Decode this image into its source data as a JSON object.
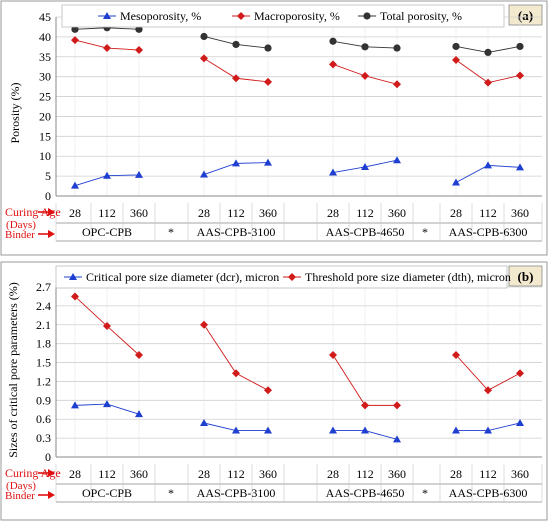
{
  "panels": [
    {
      "id": "a",
      "panel_label": "(a)",
      "ylabel": "Porosity (%)",
      "yticks": [
        "0",
        "5",
        "10",
        "15",
        "20",
        "25",
        "30",
        "35",
        "40",
        "45"
      ]
    },
    {
      "id": "b",
      "panel_label": "(b)",
      "ylabel": "Sizes of critical pore parameters (%)",
      "yticks": [
        "0",
        "0.3",
        "0.6",
        "0.9",
        "1.2",
        "1.5",
        "1.8",
        "2.1",
        "2.4",
        "2.7"
      ]
    }
  ],
  "axis_rows": {
    "curing_age_label_1": "Curing Age",
    "curing_age_label_2": "(Days)",
    "binder_label": "Binder",
    "ages": [
      "28",
      "112",
      "360"
    ],
    "binders": [
      "OPC-CPB",
      "AAS-CPB-3100",
      "AAS-CPB-4650",
      "AAS-CPB-6300"
    ],
    "separator": "*"
  },
  "colors": {
    "meso": "#1f3fd0",
    "macro": "#d11a1a",
    "total": "#333333",
    "arrow": "#e01010",
    "axis": "#888888",
    "grid": "#cfcfcf"
  },
  "chart_data": [
    {
      "type": "line",
      "panel": "(a)",
      "ylabel": "Porosity (%)",
      "ylim": [
        0,
        45
      ],
      "grid": true,
      "legend_position": "top",
      "categories": [
        "OPC-CPB 28",
        "OPC-CPB 112",
        "OPC-CPB 360",
        "AAS-CPB-3100 28",
        "AAS-CPB-3100 112",
        "AAS-CPB-3100 360",
        "AAS-CPB-4650 28",
        "AAS-CPB-4650 112",
        "AAS-CPB-4650 360",
        "AAS-CPB-6300 28",
        "AAS-CPB-6300 112",
        "AAS-CPB-6300 360"
      ],
      "series": [
        {
          "name": "Mesoporosity, %",
          "marker": "triangle",
          "color": "#1f3fd0",
          "values": [
            2.6,
            5.1,
            5.3,
            5.4,
            8.2,
            8.4,
            5.9,
            7.3,
            9.0,
            3.4,
            7.7,
            7.2
          ]
        },
        {
          "name": "Macroporosity, %",
          "marker": "diamond",
          "color": "#d11a1a",
          "values": [
            39.2,
            37.2,
            36.7,
            34.6,
            29.6,
            28.7,
            33.1,
            30.2,
            28.1,
            34.2,
            28.5,
            30.3
          ]
        },
        {
          "name": "Total porosity, %",
          "marker": "circle",
          "color": "#333333",
          "values": [
            41.9,
            42.3,
            41.9,
            40.1,
            38.1,
            37.2,
            38.9,
            37.5,
            37.2,
            37.6,
            36.1,
            37.6
          ]
        }
      ]
    },
    {
      "type": "line",
      "panel": "(b)",
      "ylabel": "Sizes of critical pore parameters (%)",
      "ylim": [
        0,
        2.7
      ],
      "grid": true,
      "legend_position": "top",
      "categories": [
        "OPC-CPB 28",
        "OPC-CPB 112",
        "OPC-CPB 360",
        "AAS-CPB-3100 28",
        "AAS-CPB-3100 112",
        "AAS-CPB-3100 360",
        "AAS-CPB-4650 28",
        "AAS-CPB-4650 112",
        "AAS-CPB-4650 360",
        "AAS-CPB-6300 28",
        "AAS-CPB-6300 112",
        "AAS-CPB-6300 360"
      ],
      "series": [
        {
          "name": "Critical pore size diameter (dcr), micron",
          "marker": "triangle",
          "color": "#1f3fd0",
          "values": [
            0.82,
            0.84,
            0.68,
            0.54,
            0.42,
            0.42,
            0.42,
            0.42,
            0.28,
            0.42,
            0.42,
            0.54
          ]
        },
        {
          "name": "Threshold pore size diameter (dth), micron",
          "marker": "diamond",
          "color": "#d11a1a",
          "values": [
            2.55,
            2.08,
            1.62,
            2.1,
            1.33,
            1.06,
            1.62,
            0.82,
            0.82,
            1.62,
            1.06,
            1.33
          ]
        }
      ]
    }
  ]
}
